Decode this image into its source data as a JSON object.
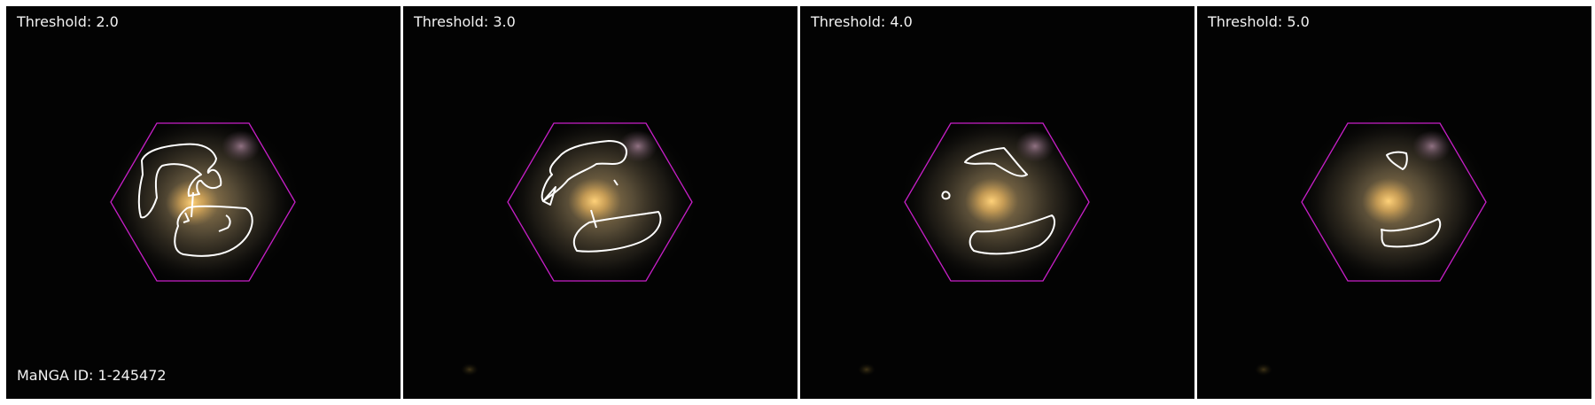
{
  "panels": [
    {
      "threshold_label": "Threshold: 2.0"
    },
    {
      "threshold_label": "Threshold: 3.0"
    },
    {
      "threshold_label": "Threshold: 4.0"
    },
    {
      "threshold_label": "Threshold: 5.0"
    }
  ],
  "manga_id_label": "MaNGA ID: 1-245472",
  "colors": {
    "background": "#030303",
    "hexagon": "#c71fc7",
    "contour": "#ffffff",
    "galaxy_core": "#f4c26a",
    "galaxy_halo": "#8a7a5a"
  }
}
